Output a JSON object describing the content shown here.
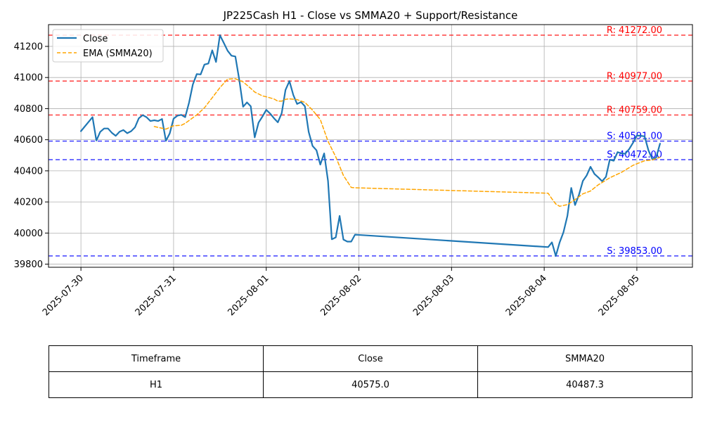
{
  "chart_data": {
    "type": "line",
    "title": "JP225Cash H1 - Close vs SMMA20 + Support/Resistance",
    "xlabel": "",
    "ylabel": "",
    "x_tick_labels": [
      "2025-07-30",
      "2025-07-31",
      "2025-08-01",
      "2025-08-02",
      "2025-08-03",
      "2025-08-04",
      "2025-08-05"
    ],
    "x_range_days": [
      -0.35,
      6.6
    ],
    "y_ticks": [
      39800,
      40000,
      40200,
      40400,
      40600,
      40800,
      41000,
      41200
    ],
    "ylim": [
      39780,
      41340
    ],
    "grid": true,
    "legend_position": "top-left",
    "series": [
      {
        "name": "Close",
        "color": "#1f77b4",
        "style": "solid",
        "x_days": [
          0.0,
          0.083,
          0.125,
          0.167,
          0.208,
          0.25,
          0.292,
          0.333,
          0.375,
          0.417,
          0.458,
          0.5,
          0.542,
          0.583,
          0.625,
          0.667,
          0.708,
          0.75,
          0.792,
          0.833,
          0.875,
          0.917,
          0.958,
          1.0,
          1.042,
          1.083,
          1.125,
          1.167,
          1.208,
          1.25,
          1.292,
          1.333,
          1.375,
          1.417,
          1.458,
          1.5,
          1.542,
          1.583,
          1.625,
          1.667,
          1.708,
          1.75,
          1.792,
          1.833,
          1.875,
          1.917,
          1.958,
          2.0,
          2.042,
          2.083,
          2.125,
          2.167,
          2.208,
          2.25,
          2.292,
          2.333,
          2.375,
          2.417,
          2.458,
          2.5,
          2.542,
          2.583,
          2.625,
          2.667,
          2.708,
          2.75,
          2.792,
          2.833,
          2.875,
          2.917,
          2.958,
          5.042,
          5.083,
          5.125,
          5.167,
          5.208,
          5.25,
          5.292,
          5.333,
          5.375,
          5.417,
          5.458,
          5.5,
          5.542,
          5.583,
          5.625,
          5.667,
          5.708,
          5.75,
          5.792,
          5.833,
          5.875,
          5.917,
          5.958,
          6.0,
          6.042,
          6.083,
          6.125,
          6.167,
          6.208,
          6.25
        ],
        "values": [
          40655,
          40715,
          40745,
          40595,
          40650,
          40672,
          40672,
          40645,
          40625,
          40652,
          40662,
          40642,
          40655,
          40680,
          40738,
          40758,
          40745,
          40720,
          40725,
          40720,
          40733,
          40593,
          40640,
          40735,
          40755,
          40760,
          40745,
          40838,
          40955,
          41022,
          41020,
          41083,
          41090,
          41175,
          41100,
          41272,
          41222,
          41172,
          41140,
          41135,
          40990,
          40812,
          40840,
          40815,
          40615,
          40710,
          40748,
          40792,
          40768,
          40738,
          40712,
          40770,
          40920,
          40977,
          40888,
          40830,
          40842,
          40815,
          40650,
          40560,
          40532,
          40440,
          40512,
          40335,
          39960,
          39972,
          40110,
          39958,
          39945,
          39945,
          39990,
          39910,
          39940,
          39853,
          39940,
          40005,
          40110,
          40290,
          40180,
          40245,
          40335,
          40370,
          40426,
          40380,
          40358,
          40333,
          40362,
          40472,
          40465,
          40520,
          40512,
          40510,
          40540,
          40580,
          40627,
          40625,
          40622,
          40532,
          40475,
          40485,
          40575
        ]
      },
      {
        "name": "EMA (SMMA20)",
        "color": "#ffa500",
        "style": "dashed",
        "x_days": [
          0.792,
          0.917,
          1.0,
          1.083,
          1.125,
          1.25,
          1.333,
          1.417,
          1.5,
          1.583,
          1.667,
          1.75,
          1.833,
          1.875,
          1.958,
          2.0,
          2.083,
          2.125,
          2.167,
          2.208,
          2.25,
          2.333,
          2.417,
          2.5,
          2.583,
          2.667,
          2.75,
          2.833,
          2.917,
          2.958,
          5.042,
          5.083,
          5.125,
          5.167,
          5.25,
          5.333,
          5.417,
          5.5,
          5.583,
          5.708,
          5.833,
          5.958,
          6.083,
          6.167,
          6.208,
          6.25
        ],
        "values": [
          40685,
          40668,
          40690,
          40693,
          40705,
          40760,
          40805,
          40870,
          40935,
          40990,
          40992,
          40972,
          40930,
          40907,
          40882,
          40876,
          40862,
          40848,
          40848,
          40860,
          40863,
          40858,
          40840,
          40790,
          40730,
          40590,
          40490,
          40370,
          40293,
          40291,
          40256,
          40220,
          40187,
          40172,
          40183,
          40215,
          40252,
          40270,
          40310,
          40355,
          40390,
          40435,
          40465,
          40470,
          40478,
          40487
        ]
      }
    ],
    "levels": [
      {
        "kind": "resistance",
        "label": "R: 41272.00",
        "value": 41272.0,
        "color": "#ff0000"
      },
      {
        "kind": "resistance",
        "label": "R: 40977.00",
        "value": 40977.0,
        "color": "#ff0000"
      },
      {
        "kind": "resistance",
        "label": "R: 40759.00",
        "value": 40759.0,
        "color": "#ff0000"
      },
      {
        "kind": "support",
        "label": "S: 40591.00",
        "value": 40591.0,
        "color": "#0000ff"
      },
      {
        "kind": "support",
        "label": "S: 40472.00",
        "value": 40472.0,
        "color": "#0000ff"
      },
      {
        "kind": "support",
        "label": "S: 39853.00",
        "value": 39853.0,
        "color": "#0000ff"
      }
    ]
  },
  "table": {
    "headers": [
      "Timeframe",
      "Close",
      "SMMA20"
    ],
    "rows": [
      [
        "H1",
        "40575.0",
        "40487.3"
      ]
    ]
  }
}
